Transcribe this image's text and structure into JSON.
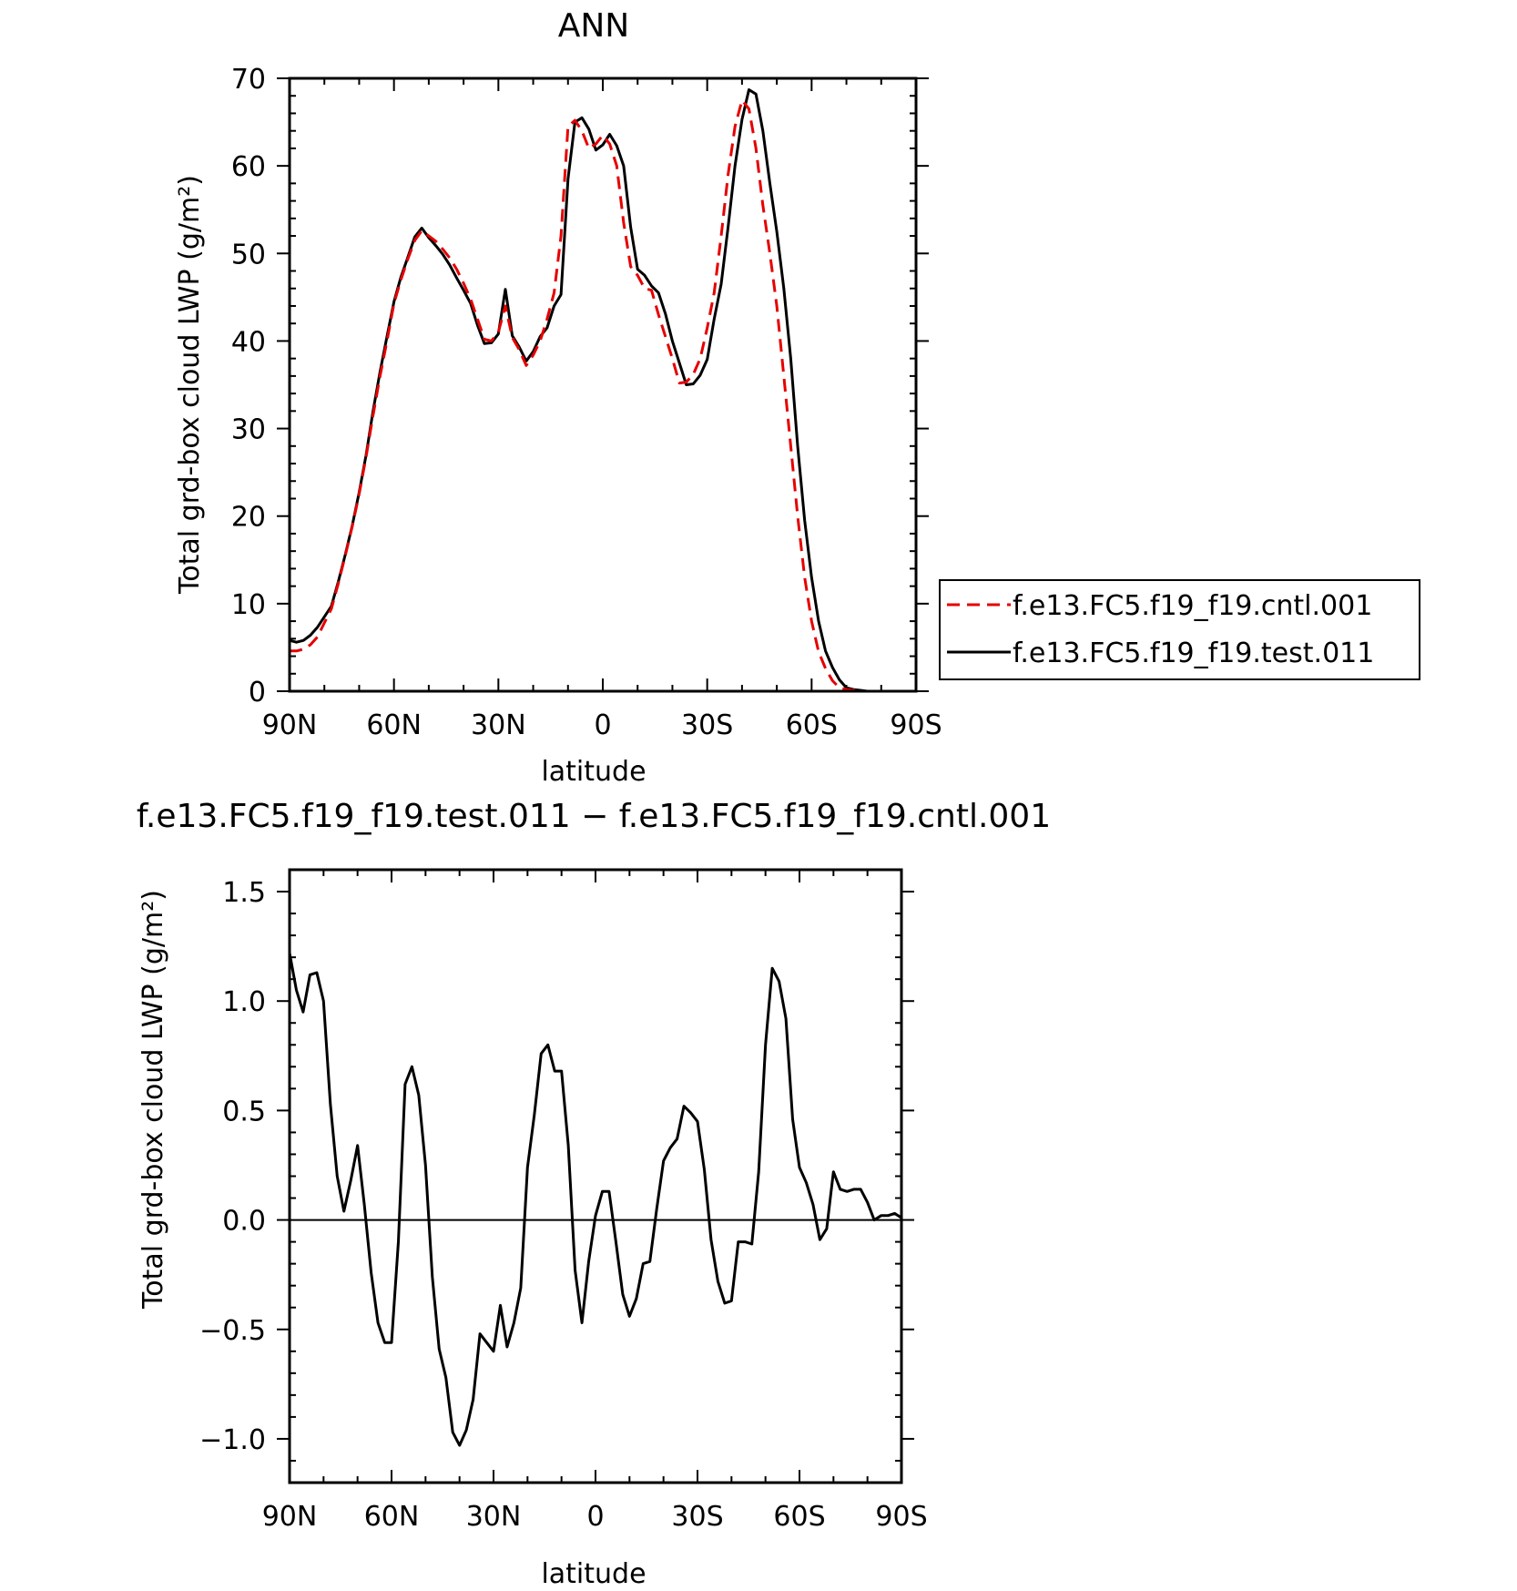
{
  "chart_data": [
    {
      "type": "line",
      "title": "ANN",
      "xlabel": "latitude",
      "ylabel": "Total grd-box cloud LWP (g/m²)",
      "xlim": [
        90,
        -90
      ],
      "ylim": [
        0,
        70
      ],
      "x_ticks": [
        90,
        60,
        30,
        0,
        -30,
        -60,
        -90
      ],
      "x_tick_labels": [
        "90N",
        "60N",
        "30N",
        "0",
        "30S",
        "60S",
        "90S"
      ],
      "y_ticks": [
        0,
        10,
        20,
        30,
        40,
        50,
        60,
        70
      ],
      "y_tick_labels": [
        "0",
        "10",
        "20",
        "30",
        "40",
        "50",
        "60",
        "70"
      ],
      "legend": "right",
      "grid": false,
      "series": [
        {
          "name": "f.e13.FC5.f19_f19.cntl.001",
          "color": "#e60000",
          "dash": "dashed",
          "x": [
            90,
            88,
            86,
            84,
            82,
            80,
            78,
            76,
            74,
            72,
            70,
            68,
            66,
            64,
            62,
            60,
            58,
            56,
            54,
            52,
            50,
            48,
            46,
            44,
            42,
            40,
            38,
            36,
            34,
            32,
            30,
            28,
            26,
            24,
            22,
            20,
            18,
            16,
            14,
            12,
            10,
            8,
            6,
            4,
            2,
            0,
            -2,
            -4,
            -6,
            -8,
            -10,
            -12,
            -14,
            -16,
            -18,
            -20,
            -22,
            -24,
            -26,
            -28,
            -30,
            -32,
            -34,
            -36,
            -38,
            -40,
            -42,
            -44,
            -46,
            -48,
            -50,
            -52,
            -54,
            -56,
            -58,
            -60,
            -62,
            -64,
            -66,
            -68,
            -70,
            -72,
            -74,
            -76,
            -78,
            -80,
            -82,
            -84,
            -86,
            -88,
            -90
          ],
          "values": [
            4.6,
            4.6,
            4.8,
            5.3,
            6.2,
            7.8,
            9.4,
            12.3,
            15.5,
            18.8,
            22.5,
            26.8,
            31.5,
            36.0,
            40.0,
            44.3,
            47.0,
            49.4,
            51.5,
            52.6,
            52.0,
            51.4,
            50.5,
            49.5,
            48.2,
            46.6,
            44.8,
            42.5,
            40.2,
            40.0,
            41.0,
            44.0,
            40.4,
            39.0,
            37.2,
            38.4,
            40.0,
            42.5,
            45.5,
            52.0,
            64.5,
            65.2,
            64.0,
            62.0,
            62.5,
            63.5,
            62.5,
            60.0,
            53.5,
            48.5,
            47.5,
            46.0,
            45.8,
            43.0,
            40.5,
            38.0,
            35.2,
            35.3,
            36.2,
            38.0,
            41.5,
            45.5,
            52.0,
            59.0,
            64.5,
            67.5,
            66.5,
            62.0,
            55.5,
            50.0,
            44.0,
            36.0,
            28.0,
            20.0,
            13.0,
            8.0,
            4.5,
            2.6,
            1.2,
            0.4,
            0.2,
            0.1,
            0.0,
            0.0,
            0.0,
            0.0,
            0.0,
            0.0,
            0.0,
            0.0,
            0.0
          ]
        },
        {
          "name": "f.e13.FC5.f19_f19.test.011",
          "color": "#000000",
          "dash": "solid",
          "x": [
            90,
            88,
            86,
            84,
            82,
            80,
            78,
            76,
            74,
            72,
            70,
            68,
            66,
            64,
            62,
            60,
            58,
            56,
            54,
            52,
            50,
            48,
            46,
            44,
            42,
            40,
            38,
            36,
            34,
            32,
            30,
            28,
            26,
            24,
            22,
            20,
            18,
            16,
            14,
            12,
            10,
            8,
            6,
            4,
            2,
            0,
            -2,
            -4,
            -6,
            -8,
            -10,
            -12,
            -14,
            -16,
            -18,
            -20,
            -22,
            -24,
            -26,
            -28,
            -30,
            -32,
            -34,
            -36,
            -38,
            -40,
            -42,
            -44,
            -46,
            -48,
            -50,
            -52,
            -54,
            -56,
            -58,
            -60,
            -62,
            -64,
            -66,
            -68,
            -70,
            -72,
            -74,
            -76,
            -78,
            -80,
            -82,
            -84,
            -86,
            -88,
            -90
          ],
          "values": [
            5.8,
            5.6,
            5.8,
            6.4,
            7.3,
            8.5,
            9.7,
            12.5,
            15.6,
            18.9,
            22.7,
            27.0,
            32.0,
            36.5,
            40.5,
            44.5,
            47.3,
            49.6,
            51.9,
            52.9,
            51.8,
            50.9,
            49.9,
            48.7,
            47.2,
            45.8,
            44.3,
            41.8,
            39.7,
            39.8,
            40.8,
            45.9,
            40.6,
            39.3,
            37.7,
            38.8,
            40.5,
            41.5,
            44.0,
            45.3,
            58.5,
            65.0,
            65.5,
            64.2,
            61.8,
            62.4,
            63.6,
            62.3,
            60.0,
            53.0,
            48.2,
            47.5,
            46.3,
            45.5,
            43.1,
            40.0,
            37.5,
            35.0,
            35.1,
            36.1,
            37.9,
            42.5,
            46.5,
            53.0,
            60.0,
            65.3,
            68.7,
            68.2,
            64.0,
            58.0,
            52.5,
            46.0,
            38.0,
            28.0,
            19.5,
            13.0,
            8.0,
            4.6,
            2.7,
            1.3,
            0.4,
            0.2,
            0.1,
            0.0,
            0.0,
            0.0,
            0.0,
            0.0,
            0.0,
            0.0,
            0.0
          ]
        }
      ]
    },
    {
      "type": "line",
      "title": "f.e13.FC5.f19_f19.test.011 − f.e13.FC5.f19_f19.cntl.001",
      "xlabel": "latitude",
      "ylabel": "Total grd-box cloud LWP (g/m²)",
      "xlim": [
        90,
        -90
      ],
      "ylim": [
        -1.2,
        1.6
      ],
      "x_ticks": [
        90,
        60,
        30,
        0,
        -30,
        -60,
        -90
      ],
      "x_tick_labels": [
        "90N",
        "60N",
        "30N",
        "0",
        "30S",
        "60S",
        "90S"
      ],
      "y_ticks": [
        -1.0,
        -0.5,
        0.0,
        0.5,
        1.0,
        1.5
      ],
      "y_tick_labels": [
        "−1.0",
        "−0.5",
        "0.0",
        "0.5",
        "1.0",
        "1.5"
      ],
      "grid": false,
      "series": [
        {
          "color": "#000000",
          "x": [
            90,
            88,
            86,
            84,
            82,
            80,
            78,
            76,
            74,
            72,
            70,
            68,
            66,
            64,
            62,
            60,
            58,
            56,
            54,
            52,
            50,
            48,
            46,
            44,
            42,
            40,
            38,
            36,
            34,
            32,
            30,
            28,
            26,
            24,
            22,
            20,
            18,
            16,
            14,
            12,
            10,
            8,
            6,
            4,
            2,
            0,
            -2,
            -4,
            -6,
            -8,
            -10,
            -12,
            -14,
            -16,
            -18,
            -20,
            -22,
            -24,
            -26,
            -28,
            -30,
            -32,
            -34,
            -36,
            -38,
            -40,
            -42,
            -44,
            -46,
            -48,
            -50,
            -52,
            -54,
            -56,
            -58,
            -60,
            -62,
            -64,
            -66,
            -68,
            -70,
            -72,
            -74,
            -76,
            -78,
            -80,
            -82,
            -84,
            -86,
            -88,
            -90
          ],
          "values": [
            1.22,
            1.05,
            0.95,
            1.12,
            1.13,
            1.0,
            0.53,
            0.2,
            0.04,
            0.18,
            0.34,
            0.07,
            -0.24,
            -0.47,
            -0.56,
            -0.56,
            -0.1,
            0.62,
            0.7,
            0.57,
            0.25,
            -0.26,
            -0.59,
            -0.72,
            -0.97,
            -1.03,
            -0.96,
            -0.82,
            -0.52,
            -0.56,
            -0.6,
            -0.39,
            -0.58,
            -0.47,
            -0.31,
            0.24,
            0.48,
            0.76,
            0.8,
            0.68,
            0.68,
            0.34,
            -0.23,
            -0.47,
            -0.19,
            0.02,
            0.13,
            0.13,
            -0.1,
            -0.34,
            -0.44,
            -0.36,
            -0.2,
            -0.19,
            0.05,
            0.27,
            0.33,
            0.37,
            0.52,
            0.49,
            0.45,
            0.23,
            -0.09,
            -0.28,
            -0.38,
            -0.37,
            -0.1,
            -0.1,
            -0.11,
            0.22,
            0.8,
            1.15,
            1.09,
            0.92,
            0.46,
            0.24,
            0.17,
            0.07,
            -0.09,
            -0.04,
            0.22,
            0.14,
            0.13,
            0.14,
            0.14,
            0.08,
            0.0,
            0.02,
            0.02,
            0.03,
            0.01
          ]
        }
      ]
    }
  ]
}
